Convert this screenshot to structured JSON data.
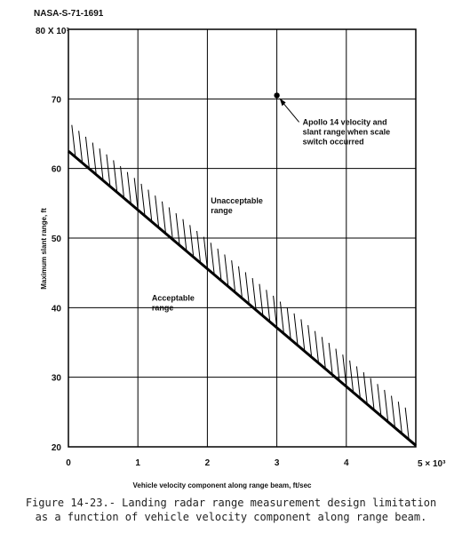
{
  "figure_id": "NASA-S-71-1691",
  "caption_line1": "Figure 14-23.- Landing radar range measurement design limitation",
  "caption_line2": "as a function of vehicle velocity component along range beam.",
  "chart_data": {
    "type": "line",
    "title": "",
    "xlabel": "Vehicle velocity component along range beam, ft/sec",
    "ylabel": "Maximum slant range, ft",
    "x_scale_label": "5 × 10³",
    "y_scale_label": "80 X 10³",
    "xlim": [
      0,
      5000
    ],
    "ylim": [
      20000,
      80000
    ],
    "x_ticks": [
      0,
      1000,
      2000,
      3000,
      4000,
      5000
    ],
    "x_tick_labels": [
      "0",
      "1",
      "2",
      "3",
      "4",
      ""
    ],
    "y_ticks": [
      20000,
      30000,
      40000,
      50000,
      60000,
      70000,
      80000
    ],
    "y_tick_labels": [
      "20",
      "30",
      "40",
      "50",
      "60",
      "70",
      ""
    ],
    "grid": true,
    "limit_line": {
      "x": [
        0,
        5000
      ],
      "y": [
        62500,
        20200
      ]
    },
    "regions": [
      {
        "label_line1": "Unacceptable",
        "label_line2": "range",
        "x": 2050,
        "y": 55000
      },
      {
        "label_line1": "Acceptable",
        "label_line2": "range",
        "x": 1200,
        "y": 41000
      }
    ],
    "point": {
      "x": 3000,
      "y": 70500,
      "annotation_lines": [
        "Apollo 14 velocity and",
        "slant range when scale",
        "switch occurred"
      ]
    }
  }
}
